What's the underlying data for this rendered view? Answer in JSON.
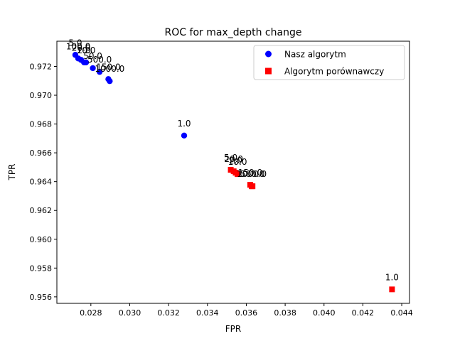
{
  "chart_data": {
    "type": "scatter",
    "title": "ROC for max_depth change",
    "xlabel": "FPR",
    "ylabel": "TPR",
    "xlim": [
      0.02625,
      0.0444
    ],
    "ylim": [
      0.95555,
      0.97375
    ],
    "xticks": [
      "0.028",
      "0.030",
      "0.032",
      "0.034",
      "0.036",
      "0.038",
      "0.040",
      "0.042",
      "0.044"
    ],
    "yticks": [
      "0.956",
      "0.958",
      "0.960",
      "0.962",
      "0.964",
      "0.966",
      "0.968",
      "0.970",
      "0.972"
    ],
    "legend_position": "top-right",
    "grid": false,
    "series": [
      {
        "name": "Nasz algorytm",
        "color": "#0000ff",
        "marker": "circle",
        "points": [
          {
            "x": 0.0272,
            "y": 0.9728,
            "label": "5.0"
          },
          {
            "x": 0.02735,
            "y": 0.97255,
            "label": "100.0"
          },
          {
            "x": 0.0275,
            "y": 0.97245,
            "label": "20.0"
          },
          {
            "x": 0.02765,
            "y": 0.97228,
            "label": "2.0"
          },
          {
            "x": 0.02775,
            "y": 0.97228,
            "label": "10.0"
          },
          {
            "x": 0.0281,
            "y": 0.97188,
            "label": "50.0"
          },
          {
            "x": 0.02845,
            "y": 0.97162,
            "label": "500.0"
          },
          {
            "x": 0.0289,
            "y": 0.97112,
            "label": "150.0"
          },
          {
            "x": 0.02897,
            "y": 0.97098,
            "label": "1000.0"
          },
          {
            "x": 0.0328,
            "y": 0.9672,
            "label": "1.0"
          }
        ]
      },
      {
        "name": "Algorytm porównawczy",
        "color": "#ff0000",
        "marker": "square",
        "points": [
          {
            "x": 0.0352,
            "y": 0.96482,
            "label": "5.0"
          },
          {
            "x": 0.03535,
            "y": 0.96472,
            "label": "20.0"
          },
          {
            "x": 0.03545,
            "y": 0.96462,
            "label": "2.0"
          },
          {
            "x": 0.03555,
            "y": 0.96452,
            "label": "10.0"
          },
          {
            "x": 0.0362,
            "y": 0.96378,
            "label": "150.0"
          },
          {
            "x": 0.03628,
            "y": 0.96368,
            "label": "1000.0"
          },
          {
            "x": 0.03632,
            "y": 0.96368,
            "label": "500.0"
          },
          {
            "x": 0.0435,
            "y": 0.95652,
            "label": "1.0"
          }
        ]
      }
    ]
  }
}
